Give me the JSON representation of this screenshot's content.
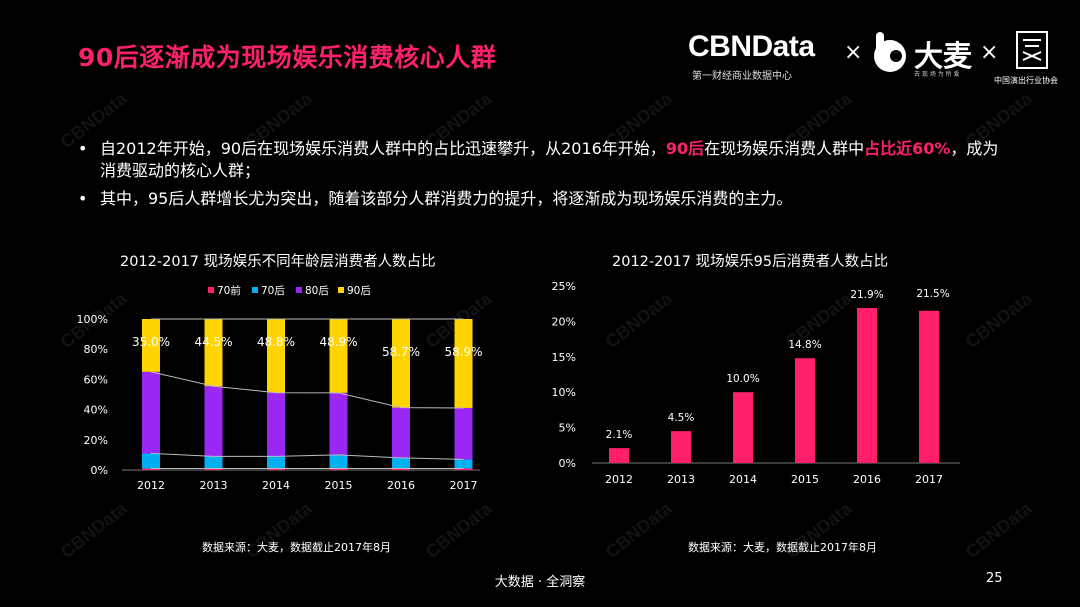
{
  "title": "90后逐渐成为现场娱乐消费核心人群",
  "brand": {
    "cbn": "CBNData",
    "cbn_sub": "第一财经商业数据中心",
    "times": "×",
    "damai": "大麦",
    "damai_sub": "去 现 场  为 所 爱",
    "seal_text": "中国演出行业协会"
  },
  "bullets": [
    {
      "parts": [
        {
          "text": "自2012年开始，90后在现场娱乐消费人群中的占比迅速攀升，从2016年开始，",
          "hl": false
        },
        {
          "text": "90后",
          "hl": true
        },
        {
          "text": "在现场娱乐消费人群中",
          "hl": false
        },
        {
          "text": "占比近60%",
          "hl": true
        },
        {
          "text": "，成为消费驱动的核心人群；",
          "hl": false
        }
      ]
    },
    {
      "parts": [
        {
          "text": "其中，95后人群增长尤为突出，随着该部分人群消费力的提升，将逐渐成为现场娱乐消费的主力。",
          "hl": false
        }
      ]
    }
  ],
  "bullet_symbol": "•",
  "watermark": "CBNData",
  "footer": "大数据 · 全洞察",
  "page_number": "25",
  "colors": {
    "accent": "#ff1f6b",
    "pre70": "#ff1f6b",
    "c70": "#00b0f0",
    "c80": "#9b27f5",
    "c90": "#ffd400",
    "bar95": "#ff1f6b"
  },
  "chart_data": [
    {
      "type": "bar",
      "stacked": true,
      "title": "2012-2017 现场娱乐不同年龄层消费者人数占比",
      "categories": [
        "2012",
        "2013",
        "2014",
        "2015",
        "2016",
        "2017"
      ],
      "series": [
        {
          "name": "70前",
          "values": [
            1,
            1,
            1,
            1,
            1,
            1
          ]
        },
        {
          "name": "70后",
          "values": [
            10,
            8,
            8,
            9,
            7,
            6
          ]
        },
        {
          "name": "80后",
          "values": [
            54,
            46.5,
            42.2,
            41.1,
            33.3,
            34.1
          ]
        },
        {
          "name": "90后",
          "values": [
            35.0,
            44.5,
            48.8,
            48.9,
            58.7,
            58.9
          ]
        }
      ],
      "data_labels": [
        "35.0%",
        "44.5%",
        "48.8%",
        "48.9%",
        "58.7%",
        "58.9%"
      ],
      "yticks": [
        "0%",
        "20%",
        "40%",
        "60%",
        "80%",
        "100%"
      ],
      "ylim": [
        0,
        100
      ],
      "legend": "top",
      "source": "数据来源：大麦，数据截止2017年8月"
    },
    {
      "type": "bar",
      "title": "2012-2017 现场娱乐95后消费者人数占比",
      "categories": [
        "2012",
        "2013",
        "2014",
        "2015",
        "2016",
        "2017"
      ],
      "values": [
        2.1,
        4.5,
        10.0,
        14.8,
        21.9,
        21.5
      ],
      "data_labels": [
        "2.1%",
        "4.5%",
        "10.0%",
        "14.8%",
        "21.9%",
        "21.5%"
      ],
      "yticks": [
        "0%",
        "5%",
        "10%",
        "15%",
        "20%",
        "25%"
      ],
      "ylim": [
        0,
        25
      ],
      "source": "数据来源：大麦，数据截止2017年8月"
    }
  ]
}
